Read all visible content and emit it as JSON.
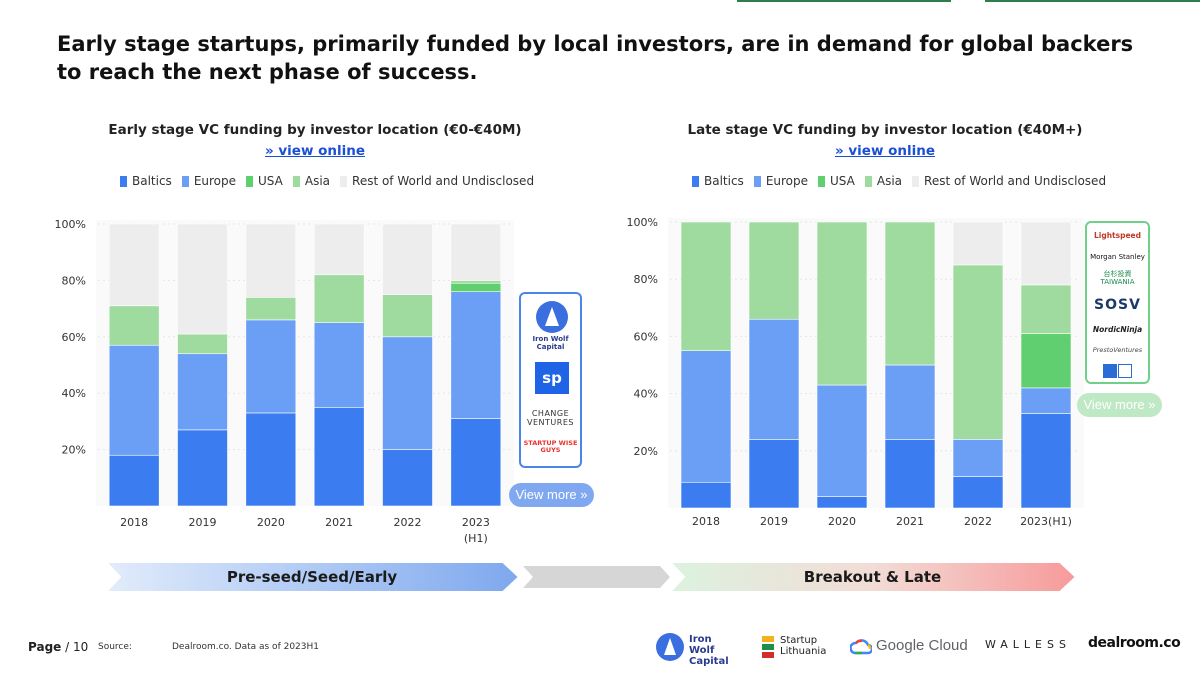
{
  "headline": "Early stage startups, primarily funded by local investors, are in demand for global backers to reach the next phase of success.",
  "colors": {
    "Baltics": "#3b7df0",
    "Europe": "#6b9ff5",
    "USA": "#5fcf6f",
    "Asia": "#9fdb9f",
    "Rest of World and Undisclosed": "#ededed"
  },
  "legend": [
    "Baltics",
    "Europe",
    "USA",
    "Asia",
    "Rest of World and Undisclosed"
  ],
  "chart_data": [
    {
      "type": "bar",
      "stacked": true,
      "title": "Early stage VC funding by investor location (€0-€40M)",
      "link_label": "» view online",
      "categories": [
        "2018",
        "2019",
        "2020",
        "2021",
        "2022",
        "2023 (H1)"
      ],
      "ylim": [
        0,
        100
      ],
      "yticks": [
        "20%",
        "40%",
        "60%",
        "80%",
        "100%"
      ],
      "series": [
        {
          "name": "Baltics",
          "values": [
            18,
            27,
            33,
            35,
            20,
            31
          ]
        },
        {
          "name": "Europe",
          "values": [
            39,
            27,
            33,
            30,
            40,
            45
          ]
        },
        {
          "name": "USA",
          "values": [
            0,
            0,
            0,
            0,
            0,
            3
          ]
        },
        {
          "name": "Asia",
          "values": [
            14,
            7,
            8,
            17,
            15,
            1
          ]
        },
        {
          "name": "Rest of World and Undisclosed",
          "values": [
            29,
            39,
            26,
            18,
            25,
            20
          ]
        }
      ]
    },
    {
      "type": "bar",
      "stacked": true,
      "title": "Late stage VC funding by investor location (€40M+)",
      "link_label": "» view online",
      "categories": [
        "2018",
        "2019",
        "2020",
        "2021",
        "2022",
        "2023(H1)"
      ],
      "ylim": [
        0,
        100
      ],
      "yticks": [
        "20%",
        "40%",
        "60%",
        "80%",
        "100%"
      ],
      "series": [
        {
          "name": "Baltics",
          "values": [
            9,
            24,
            4,
            24,
            11,
            33
          ]
        },
        {
          "name": "Europe",
          "values": [
            46,
            42,
            39,
            26,
            13,
            9
          ]
        },
        {
          "name": "USA",
          "values": [
            0,
            0,
            0,
            0,
            0,
            19
          ]
        },
        {
          "name": "Asia",
          "values": [
            45,
            34,
            57,
            50,
            61,
            17
          ]
        },
        {
          "name": "Rest of World and Undisclosed",
          "values": [
            0,
            0,
            0,
            0,
            15,
            22
          ]
        }
      ]
    }
  ],
  "early_logos": [
    "Iron Wolf Capital",
    "sp",
    "CHANGE VENTURES",
    "STARTUP WISE GUYS"
  ],
  "late_logos": [
    "Lightspeed",
    "Morgan Stanley",
    "台杉投資 TAIWANIA",
    "SOSV",
    "NordicNinja",
    "PrestoVentures",
    "LMGA"
  ],
  "view_more": "View more »",
  "stages": {
    "early": "Pre-seed/Seed/Early",
    "late": "Breakout & Late"
  },
  "footer": {
    "page_label": "Page",
    "page_number": "/ 10",
    "source_label": "Source:",
    "source_text": "Dealroom.co. Data as of 2023H1",
    "partners": [
      "Iron Wolf Capital",
      "Startup Lithuania",
      "Google Cloud",
      "WALLESS",
      "dealroom.co"
    ]
  }
}
